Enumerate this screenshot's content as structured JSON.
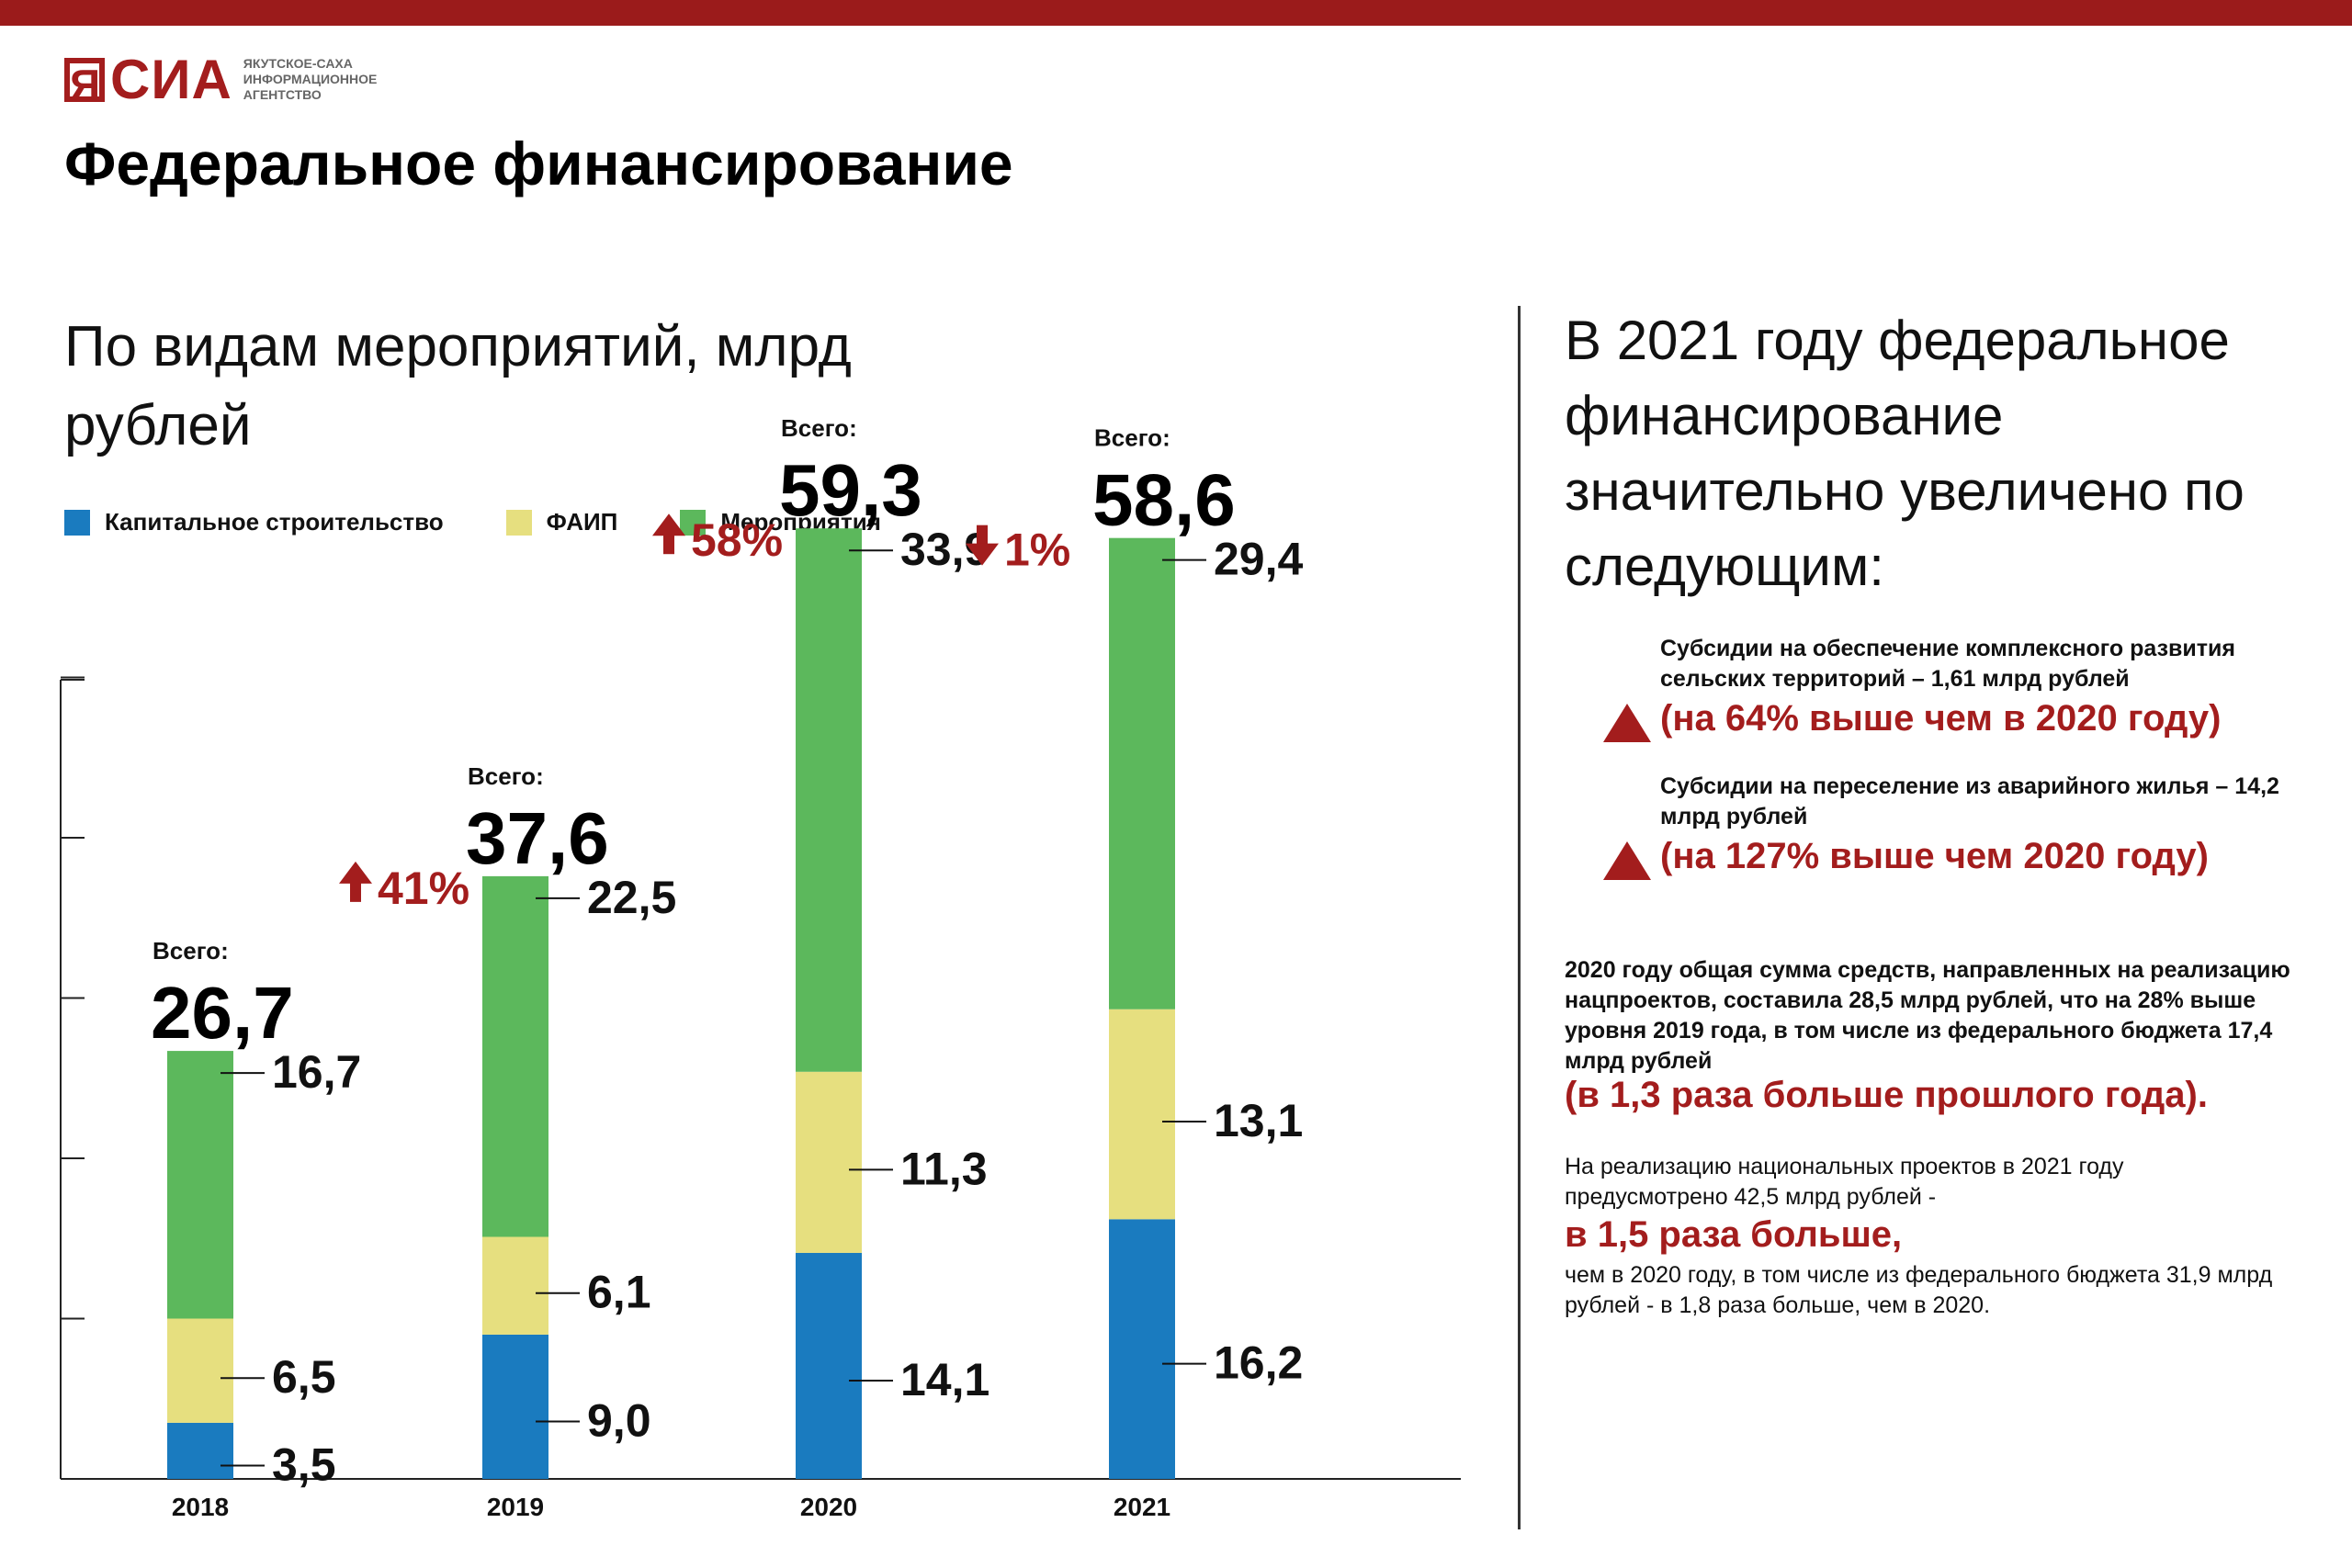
{
  "brand": {
    "logo_text": "СИА",
    "logo_box_letter": "Я",
    "logo_subtitle_lines": [
      "ЯКУТСКОЕ-САХА",
      "ИНФОРМАЦИОННОЕ",
      "АГЕНТСТВО"
    ]
  },
  "page": {
    "title": "Федеральное финансирование",
    "subtitle": "По видам мероприятий, млрд рублей"
  },
  "colors": {
    "accent": "#a31d1d",
    "capital": "#1a7bbf",
    "faip": "#e6df7f",
    "events": "#5cb85c"
  },
  "legend": [
    {
      "label": "Капитальное строительство",
      "color": "#1a7bbf"
    },
    {
      "label": "ФАИП",
      "color": "#e6df7f"
    },
    {
      "label": "Мероприятия",
      "color": "#5cb85c"
    }
  ],
  "chart_data": {
    "type": "bar",
    "stacked": true,
    "categories": [
      "2018",
      "2019",
      "2020",
      "2021"
    ],
    "series": [
      {
        "name": "Капитальное строительство",
        "color": "#1a7bbf",
        "values": [
          3.5,
          9.0,
          14.1,
          16.2
        ],
        "labels": [
          "3,5",
          "9,0",
          "14,1",
          "16,2"
        ]
      },
      {
        "name": "ФАИП",
        "color": "#e6df7f",
        "values": [
          6.5,
          6.1,
          11.3,
          13.1
        ],
        "labels": [
          "6,5",
          "6,1",
          "11,3",
          "13,1"
        ]
      },
      {
        "name": "Мероприятия",
        "color": "#5cb85c",
        "values": [
          16.7,
          22.5,
          33.9,
          29.4
        ],
        "labels": [
          "16,7",
          "22,5",
          "33,9",
          "29,4"
        ]
      }
    ],
    "totals_label": "Всего:",
    "totals": [
      "26,7",
      "37,6",
      "59,3",
      "58,6"
    ],
    "changes": [
      null,
      {
        "text": "41%",
        "direction": "up"
      },
      {
        "text": "58%",
        "direction": "up"
      },
      {
        "text": "1%",
        "direction": "down"
      }
    ],
    "ylim": [
      0,
      60
    ],
    "grid": false
  },
  "right_panel": {
    "heading": "В 2021 году федеральное финансирование значительно увеличено по следующим:",
    "items": [
      {
        "text": "Субсидии на обеспечение комплексного развития сельских территорий – 1,61 млрд рублей",
        "accent": "(на 64% выше чем в 2020 году)"
      },
      {
        "text": "Субсидии на переселение из аварийного жилья – 14,2 млрд рублей",
        "accent": "(на 127% выше чем 2020 году)"
      }
    ],
    "para1": "2020 году общая сумма средств, направленных на реализацию нацпроектов, составила 28,5 млрд рублей, что на 28% выше уровня 2019 года, в том числе из федерального бюджета 17,4 млрд рублей",
    "para1_accent": "(в 1,3 раза больше прошлого года).",
    "para2": "На реализацию национальных проектов в 2021 году предусмотрено 42,5 млрд рублей -",
    "para2_accent": "в 1,5 раза больше,",
    "para3": "чем в 2020 году, в том числе из федерального бюджета 31,9 млрд рублей - в 1,8 раза больше, чем в 2020."
  }
}
